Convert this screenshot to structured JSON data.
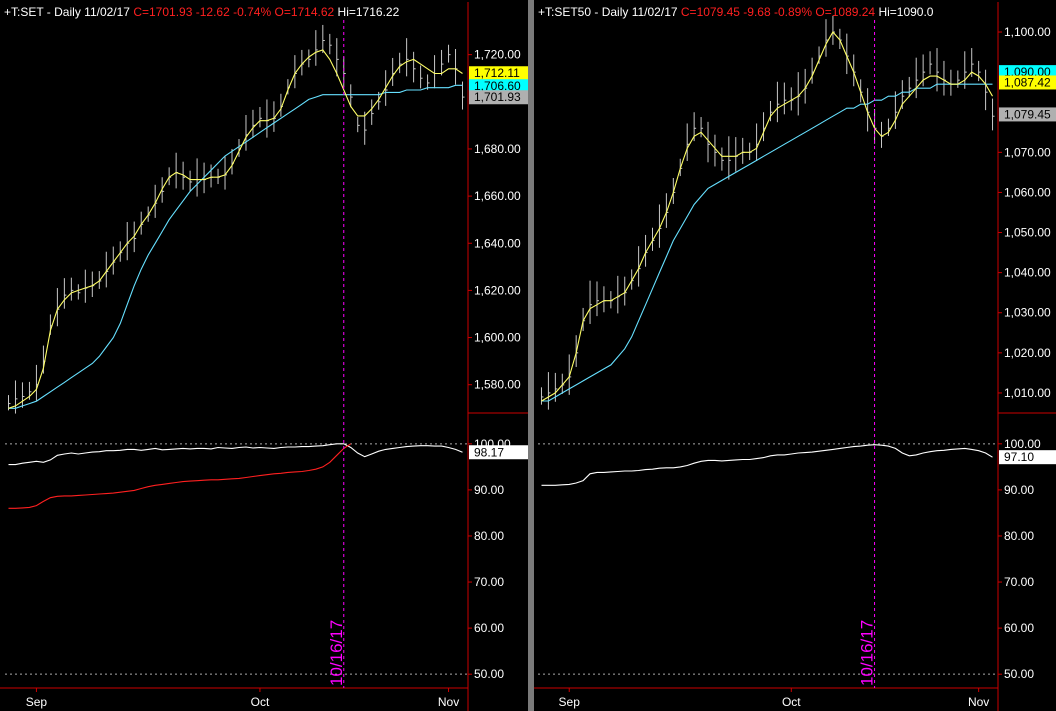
{
  "panels": [
    {
      "symbol": "+T:SET",
      "period": "Daily",
      "date": "11/02/17",
      "close_text": "C=1701.93",
      "change_text": "-12.62",
      "pct_text": "-0.74%",
      "open_text": "O=1714.62",
      "high_text": "Hi=1716.22",
      "price_ticks": [
        "1,720.00",
        "1,680.00",
        "1,660.00",
        "1,640.00",
        "1,620.00",
        "1,600.00",
        "1,580.00"
      ],
      "price_tick_values": [
        1720,
        1680,
        1660,
        1640,
        1620,
        1600,
        1580
      ],
      "tags": [
        {
          "text": "1,712.11",
          "value": 1712.11,
          "bg": "#ffff00",
          "fg": "#000000"
        },
        {
          "text": "1,706.60",
          "value": 1706.6,
          "bg": "#00ffff",
          "fg": "#000000"
        },
        {
          "text": "1,701.93",
          "value": 1701.93,
          "bg": "#b0b0b0",
          "fg": "#000000"
        }
      ],
      "osc_ticks": [
        "100.00",
        "90.00",
        "80.00",
        "70.00",
        "60.00",
        "50.00"
      ],
      "osc_tick_values": [
        100,
        90,
        80,
        70,
        60,
        50
      ],
      "osc_tag": {
        "text": "98.17",
        "value": 98.17
      },
      "x_ticks": [
        "Sep",
        "Oct",
        "Nov"
      ],
      "x_tick_index": [
        4,
        36,
        63
      ],
      "vline_label": "10/16/17",
      "vline_index": 48
    },
    {
      "symbol": "+T:SET50",
      "period": "Daily",
      "date": "11/02/17",
      "close_text": "C=1079.45",
      "change_text": "-9.68",
      "pct_text": "-0.89%",
      "open_text": "O=1089.24",
      "high_text": "Hi=1090.0",
      "price_ticks": [
        "1,100.00",
        "1,070.00",
        "1,060.00",
        "1,050.00",
        "1,040.00",
        "1,030.00",
        "1,020.00",
        "1,010.00"
      ],
      "price_tick_values": [
        1100,
        1070,
        1060,
        1050,
        1040,
        1030,
        1020,
        1010
      ],
      "tags": [
        {
          "text": "1,090.00",
          "value": 1090.0,
          "bg": "#00ffff",
          "fg": "#000000"
        },
        {
          "text": "1,087.42",
          "value": 1087.42,
          "bg": "#ffff00",
          "fg": "#000000"
        },
        {
          "text": "1,079.45",
          "value": 1079.45,
          "bg": "#b0b0b0",
          "fg": "#000000"
        }
      ],
      "osc_ticks": [
        "100.00",
        "90.00",
        "80.00",
        "70.00",
        "60.00",
        "50.00"
      ],
      "osc_tick_values": [
        100,
        90,
        80,
        70,
        60,
        50
      ],
      "osc_tag": {
        "text": "97.10",
        "value": 97.1
      },
      "x_ticks": [
        "Sep",
        "Oct",
        "Nov"
      ],
      "x_tick_index": [
        4,
        36,
        63
      ],
      "vline_label": "10/16/17",
      "vline_index": 48
    }
  ],
  "colors": {
    "background": "#000000",
    "axis": "#cc0000",
    "bars": "#c8c8c8",
    "ma_fast": "#ffff66",
    "ma_slow": "#66e0ff",
    "osc_main": "#ffffff",
    "osc_secondary": "#ff2020",
    "vline": "#ff00ff",
    "header_label": "#ffffff",
    "header_value": "#ff2020"
  },
  "chart_data": [
    {
      "type": "line",
      "title": "+T:SET - Daily 11/02/17",
      "x_count": 66,
      "ylim": [
        1568,
        1733
      ],
      "series": [
        {
          "name": "price",
          "values": [
            1572,
            1574,
            1575,
            1577,
            1580,
            1590,
            1605,
            1612,
            1618,
            1620,
            1619,
            1621,
            1622,
            1624,
            1628,
            1632,
            1636,
            1640,
            1642,
            1648,
            1652,
            1657,
            1662,
            1668,
            1670,
            1668,
            1666,
            1667,
            1667,
            1668,
            1668,
            1669,
            1674,
            1680,
            1686,
            1690,
            1693,
            1692,
            1693,
            1698,
            1706,
            1712,
            1716,
            1718,
            1722,
            1726,
            1724,
            1718,
            1712,
            1702,
            1690,
            1688,
            1695,
            1700,
            1705,
            1712,
            1716,
            1718,
            1714,
            1710,
            1708,
            1712,
            1716,
            1720,
            1714,
            1702
          ]
        },
        {
          "name": "ma_fast",
          "values": [
            1570,
            1571,
            1573,
            1575,
            1578,
            1587,
            1603,
            1612,
            1616,
            1619,
            1620,
            1621,
            1622,
            1624,
            1628,
            1632,
            1636,
            1640,
            1643,
            1648,
            1652,
            1657,
            1663,
            1668,
            1670,
            1669,
            1667,
            1667,
            1667,
            1668,
            1668,
            1669,
            1673,
            1679,
            1685,
            1689,
            1692,
            1692,
            1693,
            1697,
            1705,
            1712,
            1716,
            1719,
            1721,
            1722,
            1718,
            1712,
            1705,
            1698,
            1694,
            1694,
            1697,
            1701,
            1706,
            1711,
            1715,
            1717,
            1718,
            1716,
            1714,
            1712,
            1712,
            1714,
            1714,
            1712
          ]
        },
        {
          "name": "ma_slow",
          "values": [
            1570,
            1570,
            1571,
            1572,
            1573,
            1575,
            1577,
            1579,
            1581,
            1583,
            1585,
            1587,
            1589,
            1592,
            1596,
            1600,
            1606,
            1614,
            1622,
            1629,
            1635,
            1640,
            1645,
            1650,
            1654,
            1658,
            1662,
            1665,
            1668,
            1671,
            1674,
            1677,
            1679,
            1681,
            1683,
            1685,
            1687,
            1689,
            1691,
            1693,
            1695,
            1697,
            1699,
            1701,
            1702,
            1703,
            1703,
            1703,
            1703,
            1703,
            1703,
            1703,
            1703,
            1703,
            1704,
            1704,
            1704,
            1705,
            1705,
            1705,
            1706,
            1706,
            1706,
            1706,
            1707,
            1707
          ]
        }
      ]
    },
    {
      "type": "line",
      "title": "+T:SET50 - Daily 11/02/17",
      "x_count": 66,
      "ylim": [
        1005,
        1102
      ],
      "series": [
        {
          "name": "price",
          "values": [
            1009,
            1010,
            1011,
            1012,
            1014,
            1020,
            1028,
            1032,
            1033,
            1033,
            1033,
            1034,
            1035,
            1038,
            1041,
            1045,
            1048,
            1051,
            1055,
            1060,
            1066,
            1072,
            1076,
            1076,
            1072,
            1070,
            1068,
            1068,
            1069,
            1070,
            1070,
            1072,
            1076,
            1080,
            1082,
            1083,
            1083,
            1084,
            1086,
            1090,
            1094,
            1098,
            1100,
            1098,
            1094,
            1090,
            1085,
            1080,
            1076,
            1074,
            1076,
            1080,
            1084,
            1086,
            1088,
            1090,
            1092,
            1090,
            1088,
            1087,
            1088,
            1090,
            1092,
            1090,
            1085,
            1079
          ]
        },
        {
          "name": "ma_fast",
          "values": [
            1008,
            1009,
            1010,
            1012,
            1014,
            1020,
            1028,
            1031,
            1032,
            1033,
            1033,
            1034,
            1035,
            1038,
            1041,
            1045,
            1048,
            1051,
            1055,
            1060,
            1066,
            1071,
            1074,
            1075,
            1073,
            1071,
            1069,
            1069,
            1069,
            1070,
            1070,
            1071,
            1075,
            1079,
            1081,
            1082,
            1083,
            1084,
            1086,
            1089,
            1093,
            1097,
            1100,
            1098,
            1094,
            1090,
            1085,
            1080,
            1076,
            1074,
            1075,
            1078,
            1082,
            1084,
            1086,
            1088,
            1089,
            1089,
            1088,
            1087,
            1087,
            1088,
            1090,
            1089,
            1087,
            1084
          ]
        },
        {
          "name": "ma_slow",
          "values": [
            1008,
            1008,
            1009,
            1010,
            1011,
            1012,
            1013,
            1014,
            1015,
            1016,
            1017,
            1019,
            1021,
            1024,
            1028,
            1032,
            1036,
            1040,
            1044,
            1048,
            1051,
            1054,
            1057,
            1059,
            1061,
            1062,
            1063,
            1064,
            1065,
            1066,
            1067,
            1068,
            1069,
            1070,
            1071,
            1072,
            1073,
            1074,
            1075,
            1076,
            1077,
            1078,
            1079,
            1080,
            1081,
            1081,
            1082,
            1082,
            1083,
            1083,
            1084,
            1084,
            1085,
            1085,
            1086,
            1086,
            1086,
            1087,
            1087,
            1087,
            1087,
            1087,
            1087,
            1087,
            1087,
            1087
          ]
        }
      ]
    },
    {
      "type": "line",
      "title": "",
      "x_count": 66,
      "ylim": [
        47,
        103
      ],
      "series": [
        {
          "name": "osc_main",
          "values": [
            95.5,
            95.5,
            95.8,
            96,
            96.2,
            96,
            96.5,
            97.5,
            97.8,
            98,
            97.8,
            98,
            98.2,
            98.3,
            98.5,
            98.5,
            98.6,
            98.8,
            98.8,
            98.6,
            98.8,
            99,
            98.7,
            98.8,
            98.9,
            99,
            98.9,
            99,
            99,
            98.9,
            99.2,
            99.1,
            99,
            99.2,
            99.3,
            99.1,
            99.2,
            99.1,
            99,
            99.2,
            99.3,
            99.3,
            99.4,
            99.4,
            99.5,
            99.6,
            99.8,
            100,
            100,
            99.2,
            98,
            97.2,
            97.8,
            98.4,
            98.8,
            99,
            99.2,
            99.4,
            99.5,
            99.6,
            99.6,
            99.5,
            99.5,
            99.2,
            98.8,
            98.17
          ]
        },
        {
          "name": "osc_secondary",
          "values": [
            86,
            86,
            86.1,
            86.2,
            86.6,
            87.5,
            88.3,
            88.6,
            88.7,
            88.7,
            88.8,
            88.9,
            89,
            89.1,
            89.2,
            89.3,
            89.5,
            89.7,
            89.9,
            90.3,
            90.7,
            91,
            91.2,
            91.4,
            91.6,
            91.8,
            91.9,
            92,
            92.1,
            92.2,
            92.2,
            92.3,
            92.4,
            92.5,
            92.7,
            92.9,
            93.1,
            93.3,
            93.5,
            93.6,
            93.8,
            93.9,
            94,
            94.2,
            94.5,
            95,
            96,
            97.5,
            99,
            100
          ]
        }
      ]
    },
    {
      "type": "line",
      "title": "",
      "x_count": 66,
      "ylim": [
        47,
        103
      ],
      "series": [
        {
          "name": "osc_main",
          "values": [
            91,
            91,
            91,
            91.1,
            91.2,
            91.5,
            92,
            93.5,
            93.8,
            93.8,
            93.9,
            94,
            94.1,
            94.1,
            94.2,
            94.4,
            94.5,
            94.7,
            94.8,
            94.8,
            95,
            95.3,
            95.8,
            96.2,
            96.4,
            96.4,
            96.3,
            96.4,
            96.5,
            96.6,
            96.6,
            96.8,
            97,
            97.4,
            97.6,
            97.6,
            97.8,
            98,
            98.1,
            98.2,
            98.4,
            98.6,
            98.8,
            99,
            99.2,
            99.4,
            99.5,
            99.7,
            99.8,
            99.7,
            99.5,
            99,
            98,
            97.4,
            97.6,
            98,
            98.3,
            98.5,
            98.6,
            98.8,
            98.9,
            99,
            98.8,
            98.5,
            98,
            97.1
          ]
        }
      ]
    }
  ]
}
